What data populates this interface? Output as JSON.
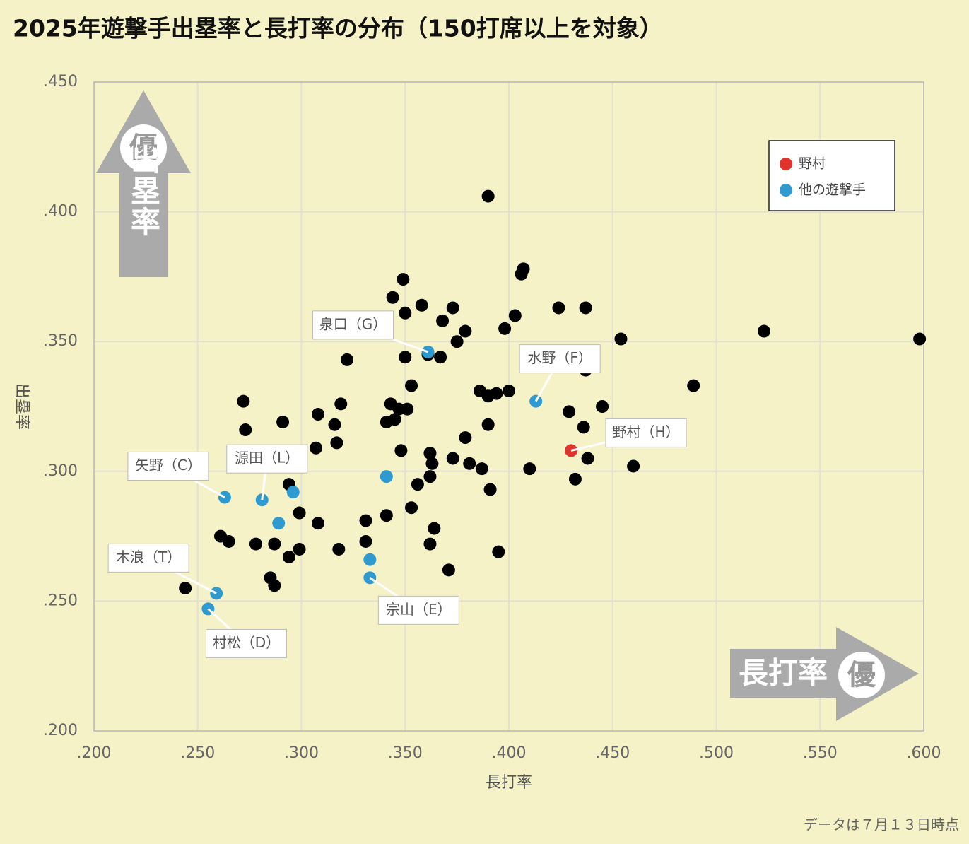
{
  "chart_data": {
    "type": "scatter",
    "title": "2025年遊撃手出塁率と長打率の分布（150打席以上を対象）",
    "x_label": "長打率",
    "y_label": "出塁率",
    "note": "データは７月１３日時点",
    "y_arrow": {
      "badge": "優",
      "text": "出塁率"
    },
    "x_arrow": {
      "badge": "優",
      "text": "長打率"
    },
    "xlim": [
      0.2,
      0.6
    ],
    "ylim": [
      0.2,
      0.45
    ],
    "xticks": [
      {
        "value": 0.2,
        "label": ".200"
      },
      {
        "value": 0.25,
        "label": ".250"
      },
      {
        "value": 0.3,
        "label": ".300"
      },
      {
        "value": 0.35,
        "label": ".350"
      },
      {
        "value": 0.4,
        "label": ".400"
      },
      {
        "value": 0.45,
        "label": ".450"
      },
      {
        "value": 0.5,
        "label": ".500"
      },
      {
        "value": 0.55,
        "label": ".550"
      },
      {
        "value": 0.6,
        "label": ".600"
      }
    ],
    "yticks": [
      {
        "value": 0.2,
        "label": ".200"
      },
      {
        "value": 0.25,
        "label": ".250"
      },
      {
        "value": 0.3,
        "label": ".300"
      },
      {
        "value": 0.35,
        "label": ".350"
      },
      {
        "value": 0.4,
        "label": ".400"
      },
      {
        "value": 0.45,
        "label": ".450"
      }
    ],
    "grid": true,
    "legend": "upper right",
    "series": [
      {
        "color": "#000000",
        "x": [
          0.39,
          0.407,
          0.406,
          0.349,
          0.344,
          0.358,
          0.35,
          0.373,
          0.424,
          0.437,
          0.403,
          0.368,
          0.379,
          0.398,
          0.523,
          0.454,
          0.598,
          0.375,
          0.35,
          0.361,
          0.367,
          0.322,
          0.437,
          0.353,
          0.489,
          0.386,
          0.39,
          0.394,
          0.4,
          0.272,
          0.343,
          0.347,
          0.351,
          0.445,
          0.429,
          0.308,
          0.319,
          0.291,
          0.341,
          0.345,
          0.316,
          0.39,
          0.436,
          0.379,
          0.273,
          0.317,
          0.348,
          0.307,
          0.362,
          0.373,
          0.438,
          0.363,
          0.381,
          0.387,
          0.41,
          0.46,
          0.362,
          0.432,
          0.356,
          0.294,
          0.391,
          0.353,
          0.299,
          0.341,
          0.331,
          0.308,
          0.364,
          0.261,
          0.265,
          0.331,
          0.278,
          0.287,
          0.362,
          0.299,
          0.318,
          0.395,
          0.294,
          0.371,
          0.285,
          0.287,
          0.244
        ],
        "values": [
          0.406,
          0.378,
          0.376,
          0.374,
          0.367,
          0.364,
          0.361,
          0.363,
          0.363,
          0.363,
          0.36,
          0.358,
          0.354,
          0.355,
          0.354,
          0.351,
          0.351,
          0.35,
          0.344,
          0.345,
          0.344,
          0.343,
          0.339,
          0.333,
          0.333,
          0.331,
          0.329,
          0.33,
          0.331,
          0.327,
          0.326,
          0.324,
          0.324,
          0.325,
          0.323,
          0.322,
          0.326,
          0.319,
          0.319,
          0.32,
          0.318,
          0.318,
          0.317,
          0.313,
          0.316,
          0.311,
          0.308,
          0.309,
          0.307,
          0.305,
          0.305,
          0.303,
          0.303,
          0.301,
          0.301,
          0.302,
          0.298,
          0.297,
          0.295,
          0.295,
          0.293,
          0.286,
          0.284,
          0.283,
          0.281,
          0.28,
          0.278,
          0.275,
          0.273,
          0.273,
          0.272,
          0.272,
          0.272,
          0.27,
          0.27,
          0.269,
          0.267,
          0.262,
          0.259,
          0.256,
          0.255
        ]
      },
      {
        "name": "他の遊撃手",
        "color": "#2e9ad0",
        "x": [
          0.361,
          0.413,
          0.263,
          0.281,
          0.296,
          0.289,
          0.341,
          0.333,
          0.333,
          0.259,
          0.255
        ],
        "values": [
          0.346,
          0.327,
          0.29,
          0.289,
          0.292,
          0.28,
          0.298,
          0.266,
          0.259,
          0.253,
          0.247
        ],
        "labels": [
          "泉口（G）",
          "水野（F）",
          "矢野（C）",
          "源田（L）",
          null,
          null,
          null,
          null,
          "宗山（E）",
          "木浪（T）",
          "村松（D）"
        ]
      },
      {
        "name": "野村",
        "color": "#e0332b",
        "x": [
          0.43
        ],
        "values": [
          0.308
        ],
        "labels": [
          "野村（H）"
        ]
      }
    ]
  }
}
